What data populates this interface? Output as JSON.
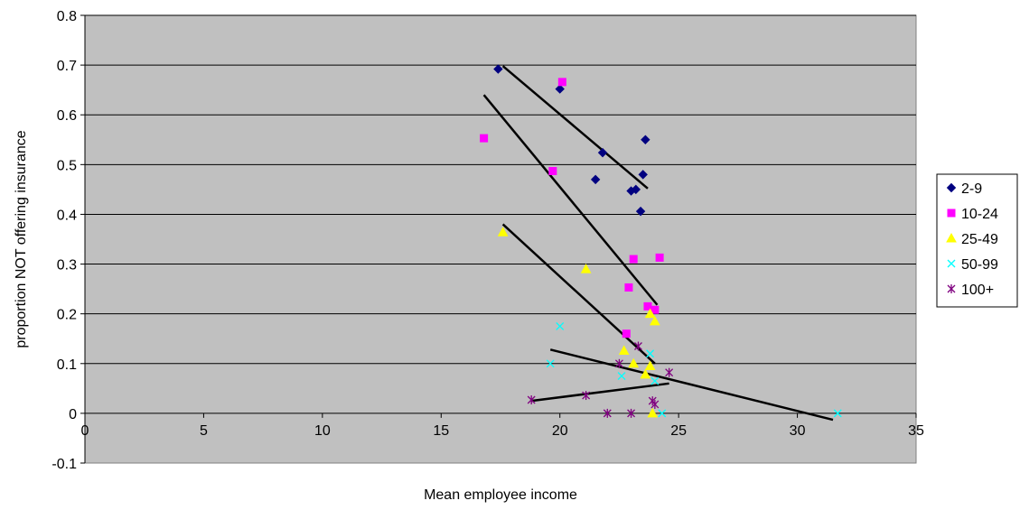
{
  "chart_data": {
    "type": "scatter",
    "title": "",
    "xlabel": "Mean employee income",
    "ylabel": "proportion NOT offering insurance",
    "xlim": [
      0,
      35
    ],
    "ylim": [
      -0.1,
      0.8
    ],
    "x_ticks": [
      "0",
      "5",
      "10",
      "15",
      "20",
      "25",
      "30",
      "35"
    ],
    "y_ticks": [
      "-0.1",
      "0",
      "0.1",
      "0.2",
      "0.3",
      "0.4",
      "0.5",
      "0.6",
      "0.7",
      "0.8"
    ],
    "grid": "horizontal",
    "plot_background": "#c0c0c0",
    "legend_position": "right",
    "series": [
      {
        "name": "2-9",
        "marker": "diamond",
        "color": "#000080",
        "points": [
          [
            17.4,
            0.692
          ],
          [
            20.0,
            0.652
          ],
          [
            21.8,
            0.524
          ],
          [
            21.5,
            0.47
          ],
          [
            23.0,
            0.447
          ],
          [
            23.2,
            0.45
          ],
          [
            23.4,
            0.406
          ],
          [
            23.5,
            0.48
          ],
          [
            23.6,
            0.55
          ]
        ],
        "trend": [
          [
            17.6,
            0.698
          ],
          [
            23.7,
            0.452
          ]
        ]
      },
      {
        "name": "10-24",
        "marker": "square",
        "color": "#ff00ff",
        "points": [
          [
            16.8,
            0.553
          ],
          [
            20.1,
            0.666
          ],
          [
            19.7,
            0.487
          ],
          [
            23.1,
            0.31
          ],
          [
            24.2,
            0.313
          ],
          [
            22.9,
            0.253
          ],
          [
            23.7,
            0.215
          ],
          [
            24.0,
            0.208
          ],
          [
            22.8,
            0.16
          ]
        ],
        "trend": [
          [
            16.8,
            0.64
          ],
          [
            24.1,
            0.218
          ]
        ]
      },
      {
        "name": "25-49",
        "marker": "triangle",
        "color": "#ffff00",
        "points": [
          [
            17.6,
            0.364
          ],
          [
            21.1,
            0.29
          ],
          [
            23.8,
            0.2
          ],
          [
            24.0,
            0.185
          ],
          [
            22.7,
            0.126
          ],
          [
            23.1,
            0.1
          ],
          [
            23.8,
            0.095
          ],
          [
            23.6,
            0.078
          ],
          [
            23.9,
            0.0
          ]
        ],
        "trend": [
          [
            17.6,
            0.38
          ],
          [
            24.0,
            0.1
          ]
        ]
      },
      {
        "name": "50-99",
        "marker": "x",
        "color": "#00ffff",
        "points": [
          [
            20.0,
            0.175
          ],
          [
            19.6,
            0.1
          ],
          [
            22.6,
            0.075
          ],
          [
            23.8,
            0.12
          ],
          [
            24.0,
            0.065
          ],
          [
            24.3,
            0.0
          ],
          [
            31.7,
            0.0
          ]
        ],
        "trend": [
          [
            19.6,
            0.128
          ],
          [
            31.5,
            -0.013
          ]
        ]
      },
      {
        "name": "100+",
        "marker": "star",
        "color": "#800080",
        "points": [
          [
            18.8,
            0.027
          ],
          [
            21.1,
            0.036
          ],
          [
            22.0,
            0.0
          ],
          [
            23.0,
            0.0
          ],
          [
            22.5,
            0.1
          ],
          [
            23.3,
            0.135
          ],
          [
            23.9,
            0.025
          ],
          [
            24.0,
            0.018
          ],
          [
            24.6,
            0.082
          ]
        ],
        "trend": [
          [
            18.8,
            0.025
          ],
          [
            24.6,
            0.06
          ]
        ]
      }
    ]
  }
}
